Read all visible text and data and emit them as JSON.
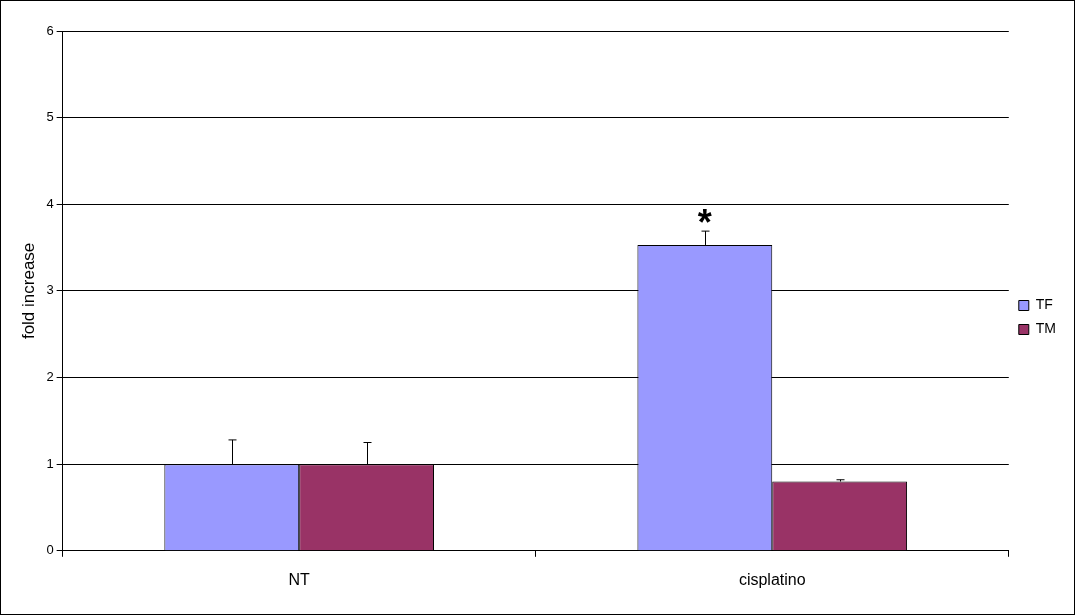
{
  "chart_data": {
    "type": "bar",
    "ylabel": "fold increase",
    "categories": [
      "NT",
      "cisplatino"
    ],
    "series": [
      {
        "name": "TF",
        "color": "#9999ff",
        "values": [
          1.0,
          3.53
        ],
        "errors": [
          [
            1.0,
            1.28
          ],
          [
            3.53,
            3.69
          ]
        ]
      },
      {
        "name": "TM",
        "color": "#993366",
        "values": [
          1.0,
          0.8
        ],
        "errors": [
          [
            1.0,
            1.25
          ],
          [
            0.8,
            0.82
          ]
        ]
      }
    ],
    "ylim": [
      0,
      6
    ],
    "yticks": [
      0,
      1,
      2,
      3,
      4,
      5,
      6
    ],
    "grid": "y",
    "legend": "right",
    "annotations": [
      "*"
    ]
  }
}
